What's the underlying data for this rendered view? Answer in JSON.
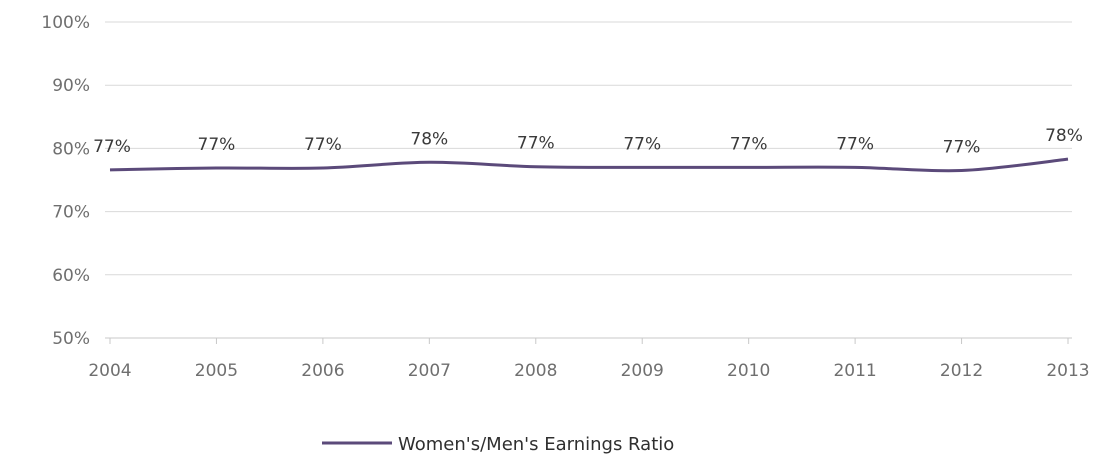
{
  "chart_data": {
    "type": "line",
    "title": "",
    "xlabel": "",
    "ylabel": "",
    "categories": [
      "2004",
      "2005",
      "2006",
      "2007",
      "2008",
      "2009",
      "2010",
      "2011",
      "2012",
      "2013"
    ],
    "ylim": [
      50,
      100
    ],
    "y_ticks": [
      100,
      90,
      80,
      70,
      60,
      50
    ],
    "y_tick_labels": [
      "100%",
      "90%",
      "80%",
      "70%",
      "60%",
      "50%"
    ],
    "grid": true,
    "legend_position": "bottom",
    "series": [
      {
        "name": "Women's/Men's Earnings Ratio",
        "color": "#5b4a7a",
        "values": [
          76.6,
          76.9,
          76.9,
          77.8,
          77.1,
          77.0,
          77.0,
          77.0,
          76.5,
          78.3
        ],
        "data_labels": [
          "77%",
          "77%",
          "77%",
          "78%",
          "77%",
          "77%",
          "77%",
          "77%",
          "77%",
          "78%"
        ]
      }
    ]
  }
}
